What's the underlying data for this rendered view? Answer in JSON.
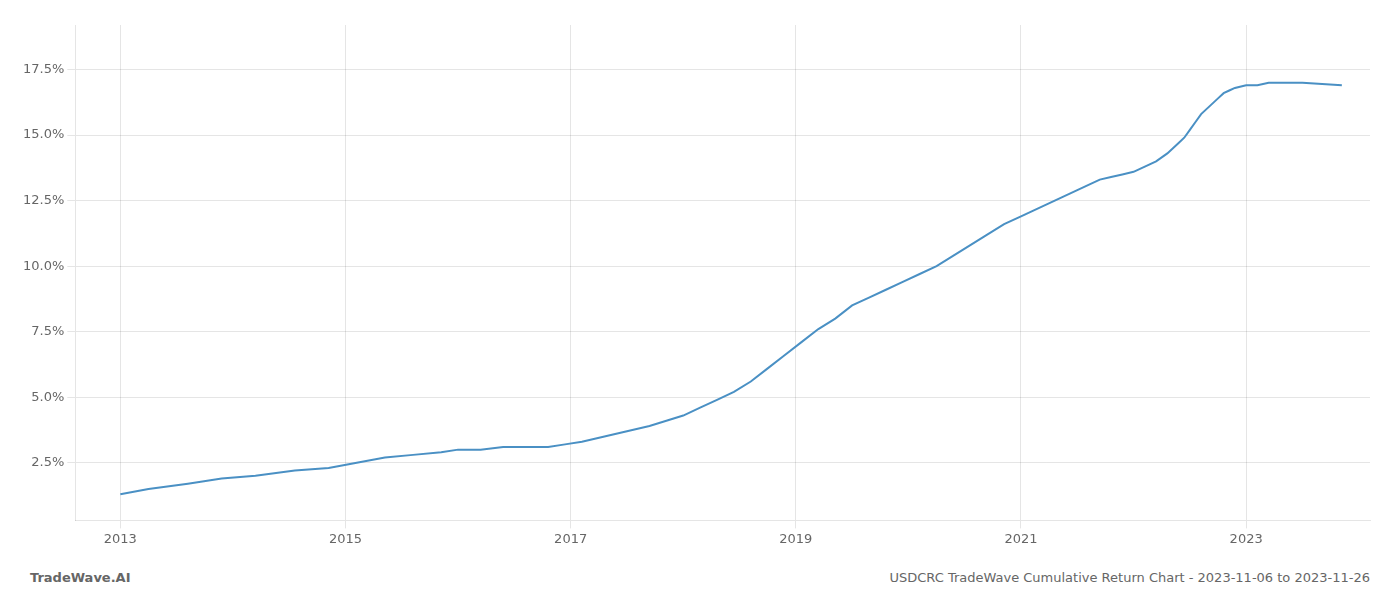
{
  "chart_data": {
    "type": "line",
    "x": [
      2013.0,
      2013.25,
      2013.6,
      2013.9,
      2014.2,
      2014.55,
      2014.85,
      2015.1,
      2015.35,
      2015.6,
      2015.85,
      2016.0,
      2016.2,
      2016.4,
      2016.55,
      2016.65,
      2016.8,
      2016.95,
      2017.1,
      2017.3,
      2017.5,
      2017.7,
      2017.85,
      2018.0,
      2018.15,
      2018.3,
      2018.45,
      2018.6,
      2018.75,
      2018.9,
      2019.05,
      2019.2,
      2019.35,
      2019.5,
      2019.65,
      2019.8,
      2019.95,
      2020.1,
      2020.25,
      2020.4,
      2020.55,
      2020.7,
      2020.85,
      2021.0,
      2021.1,
      2021.2,
      2021.3,
      2021.4,
      2021.5,
      2021.6,
      2021.7,
      2021.8,
      2021.9,
      2022.0,
      2022.1,
      2022.2,
      2022.3,
      2022.4,
      2022.45,
      2022.5,
      2022.55,
      2022.6,
      2022.7,
      2022.75,
      2022.8,
      2022.85,
      2022.9,
      2023.0,
      2023.1,
      2023.2,
      2023.5,
      2023.85
    ],
    "values": [
      0.013,
      0.015,
      0.017,
      0.019,
      0.02,
      0.022,
      0.023,
      0.025,
      0.027,
      0.028,
      0.029,
      0.03,
      0.03,
      0.031,
      0.031,
      0.031,
      0.031,
      0.032,
      0.033,
      0.035,
      0.037,
      0.039,
      0.041,
      0.043,
      0.046,
      0.049,
      0.052,
      0.056,
      0.061,
      0.066,
      0.071,
      0.076,
      0.08,
      0.085,
      0.088,
      0.091,
      0.094,
      0.097,
      0.1,
      0.104,
      0.108,
      0.112,
      0.116,
      0.119,
      0.121,
      0.123,
      0.125,
      0.127,
      0.129,
      0.131,
      0.133,
      0.134,
      0.135,
      0.136,
      0.138,
      0.14,
      0.143,
      0.147,
      0.149,
      0.152,
      0.155,
      0.158,
      0.162,
      0.164,
      0.166,
      0.167,
      0.168,
      0.169,
      0.169,
      0.17,
      0.17,
      0.169
    ],
    "color": "#4a90c4",
    "xlim": [
      2012.6,
      2024.1
    ],
    "ylim": [
      0.003,
      0.192
    ],
    "xticks": [
      2013,
      2015,
      2017,
      2019,
      2021,
      2023
    ],
    "yticks": [
      {
        "value": 0.025,
        "label": "2.5%"
      },
      {
        "value": 0.05,
        "label": "5.0%"
      },
      {
        "value": 0.075,
        "label": "7.5%"
      },
      {
        "value": 0.1,
        "label": "10.0%"
      },
      {
        "value": 0.125,
        "label": "12.5%"
      },
      {
        "value": 0.15,
        "label": "15.0%"
      },
      {
        "value": 0.175,
        "label": "17.5%"
      }
    ],
    "grid": true,
    "annotations": [
      "TradeWave.AI",
      "USDCRC TradeWave Cumulative Return Chart - 2023-11-06 to 2023-11-26"
    ]
  }
}
